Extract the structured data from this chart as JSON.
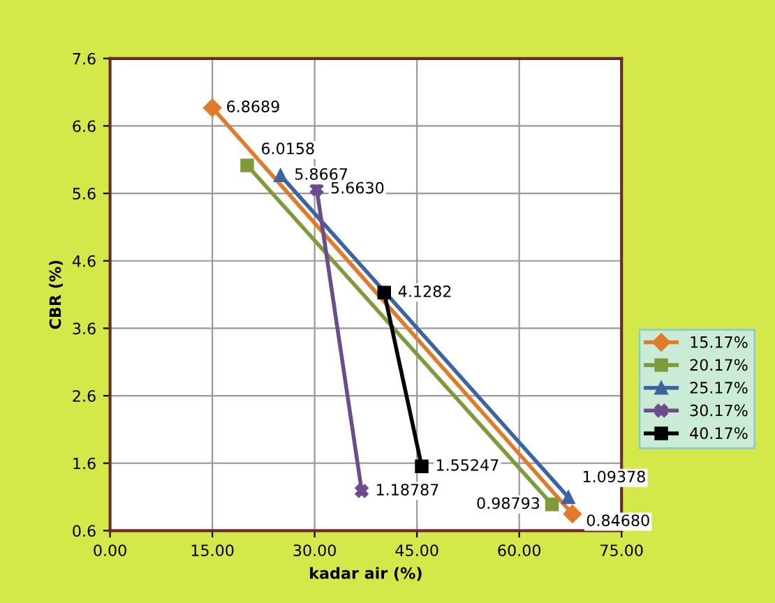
{
  "chart_data": {
    "type": "line",
    "xlabel": "kadar air (%)",
    "ylabel": "CBR (%)",
    "xlim": [
      0,
      75
    ],
    "ylim": [
      0.6,
      7.6
    ],
    "xticks": [
      {
        "value": 0,
        "label": "0.00"
      },
      {
        "value": 15,
        "label": "15.00"
      },
      {
        "value": 30,
        "label": "30.00"
      },
      {
        "value": 45,
        "label": "45.00"
      },
      {
        "value": 60,
        "label": "60.00"
      },
      {
        "value": 75,
        "label": "75.00"
      }
    ],
    "yticks": [
      0.6,
      1.6,
      2.6,
      3.6,
      4.6,
      5.6,
      6.6,
      7.6
    ],
    "grid": true,
    "legend": "right",
    "data_labels": true,
    "series": [
      {
        "name": "15.17%",
        "color": "#e07b2a",
        "marker": "diamond",
        "x": [
          15.0,
          67.8
        ],
        "values": [
          6.8689,
          0.8468
        ],
        "value_labels": [
          "6.8689",
          "0.84680"
        ]
      },
      {
        "name": "20.17%",
        "color": "#7f9a3a",
        "marker": "square",
        "x": [
          20.1,
          64.8
        ],
        "values": [
          6.0158,
          0.98793
        ],
        "value_labels": [
          "6.0158",
          "0.98793"
        ]
      },
      {
        "name": "25.17%",
        "color": "#3b64a0",
        "marker": "triangle",
        "x": [
          25.0,
          67.2
        ],
        "values": [
          5.8667,
          1.09378
        ],
        "value_labels": [
          "5.8667",
          "1.09378"
        ]
      },
      {
        "name": "30.17%",
        "color": "#6b4c8c",
        "marker": "cross",
        "x": [
          30.3,
          36.9
        ],
        "values": [
          5.663,
          1.18787
        ],
        "value_labels": [
          "5.6630",
          "1.18787"
        ]
      },
      {
        "name": "40.17%",
        "color": "#000000",
        "marker": "square",
        "x": [
          40.2,
          45.7
        ],
        "values": [
          4.1282,
          1.55247
        ],
        "value_labels": [
          "4.1282",
          "1.55247"
        ]
      }
    ]
  }
}
